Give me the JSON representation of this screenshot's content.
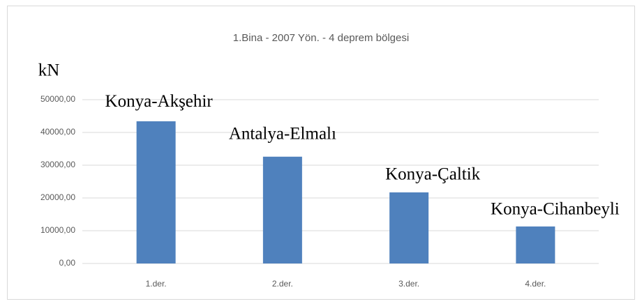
{
  "chart_data": {
    "type": "bar",
    "title": "1.Bina  - 2007 Yön. - 4 deprem bölgesi",
    "y_axis_label": "kN",
    "categories": [
      "1.der.",
      "2.der.",
      "3.der.",
      "4.der."
    ],
    "values": [
      43400,
      32600,
      21700,
      11300
    ],
    "annotations": [
      "Konya-Akşehir",
      "Antalya-Elmalı",
      "Konya-Çaltik",
      "Konya-Cihanbeyli"
    ],
    "color": "#4f81bd",
    "ylim": [
      0,
      50000
    ],
    "yticks": [
      {
        "value": 0,
        "label": "0,00"
      },
      {
        "value": 10000,
        "label": "10000,00"
      },
      {
        "value": 20000,
        "label": "20000,00"
      },
      {
        "value": 30000,
        "label": "30000,00"
      },
      {
        "value": 40000,
        "label": "40000,00"
      },
      {
        "value": 50000,
        "label": "50000,00"
      }
    ],
    "grid": true
  }
}
